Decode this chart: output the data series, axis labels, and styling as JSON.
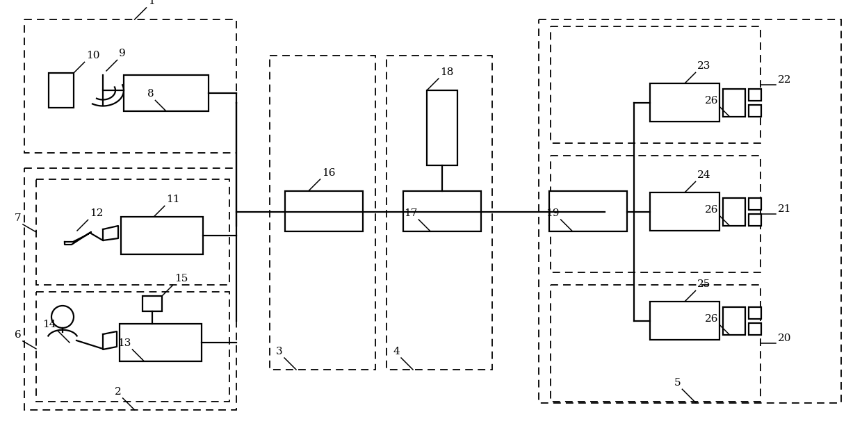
{
  "bg": "#ffffff",
  "lc": "#000000",
  "lw": 1.6,
  "lwd": 1.3,
  "fs": 11,
  "fig_w": 12.4,
  "fig_h": 6.16,
  "dpi": 100
}
